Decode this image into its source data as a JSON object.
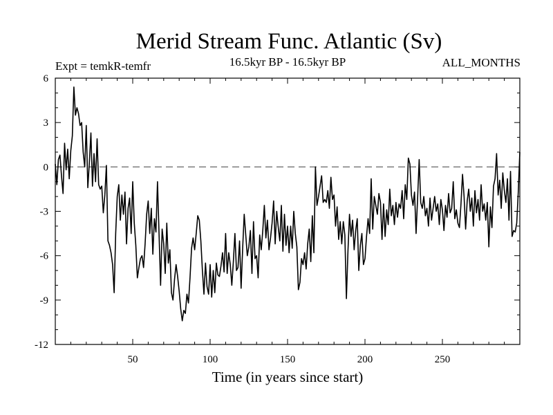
{
  "chart_data": {
    "type": "line",
    "title": "Merid Stream Func. Atlantic (Sv)",
    "subtitle_left": "Expt = temkR-temfr",
    "subtitle_center": "16.5kyr BP - 16.5kyr BP",
    "subtitle_right": "ALL_MONTHS",
    "xlabel": "Time (in years since start)",
    "ylabel": "",
    "xlim": [
      0,
      300
    ],
    "ylim": [
      -12,
      6
    ],
    "xticks": [
      50,
      100,
      150,
      200,
      250
    ],
    "xtick_labels": [
      "50",
      "100",
      "150",
      "200",
      "250"
    ],
    "yticks": [
      -12,
      -9,
      -6,
      -3,
      0,
      3,
      6
    ],
    "ytick_labels": [
      "-12",
      "-9",
      "-6",
      "-3",
      "0",
      "3",
      "6"
    ],
    "reference_line": {
      "y": 0,
      "style": "dashed"
    },
    "series": [
      {
        "name": "Merid Stream Func. Atlantic",
        "anchors": [
          [
            0,
            0.2
          ],
          [
            1,
            -1.2
          ],
          [
            2,
            0.5
          ],
          [
            3,
            0.8
          ],
          [
            4,
            -0.6
          ],
          [
            5,
            -1.8
          ],
          [
            6,
            1.6
          ],
          [
            7,
            -0.2
          ],
          [
            8,
            1.2
          ],
          [
            9,
            -0.8
          ],
          [
            10,
            1.1
          ],
          [
            11,
            2.1
          ],
          [
            12,
            5.4
          ],
          [
            13,
            3.5
          ],
          [
            14,
            4.0
          ],
          [
            15,
            3.6
          ],
          [
            16,
            2.8
          ],
          [
            17,
            3.0
          ],
          [
            18,
            1.0
          ],
          [
            19,
            0.0
          ],
          [
            20,
            2.8
          ],
          [
            21,
            -1.4
          ],
          [
            22,
            0.3
          ],
          [
            23,
            2.3
          ],
          [
            24,
            -1.3
          ],
          [
            25,
            0.9
          ],
          [
            26,
            -1.0
          ],
          [
            27,
            1.9
          ],
          [
            28,
            -1.2
          ],
          [
            29,
            -1.5
          ],
          [
            30,
            -1.3
          ],
          [
            31,
            -3.1
          ],
          [
            32,
            -1.9
          ],
          [
            33,
            0.1
          ],
          [
            34,
            -5.0
          ],
          [
            35,
            -5.3
          ],
          [
            36,
            -5.8
          ],
          [
            37,
            -6.6
          ],
          [
            38,
            -8.5
          ],
          [
            39,
            -4.5
          ],
          [
            40,
            -2.0
          ],
          [
            41,
            -1.2
          ],
          [
            42,
            -3.6
          ],
          [
            43,
            -1.9
          ],
          [
            44,
            -3.2
          ],
          [
            45,
            -1.7
          ],
          [
            46,
            -5.2
          ],
          [
            47,
            -2.8
          ],
          [
            48,
            -2.1
          ],
          [
            49,
            -4.5
          ],
          [
            50,
            -1.0
          ],
          [
            51,
            -3.8
          ],
          [
            52,
            -5.3
          ],
          [
            53,
            -7.5
          ],
          [
            54,
            -6.8
          ],
          [
            55,
            -6.2
          ],
          [
            56,
            -6.0
          ],
          [
            57,
            -6.8
          ],
          [
            58,
            -5.2
          ],
          [
            59,
            -3.2
          ],
          [
            60,
            -2.3
          ],
          [
            61,
            -4.5
          ],
          [
            62,
            -2.8
          ],
          [
            63,
            -5.9
          ],
          [
            64,
            -3.5
          ],
          [
            65,
            -4.4
          ],
          [
            66,
            -1.0
          ],
          [
            67,
            -4.5
          ],
          [
            68,
            -8.0
          ],
          [
            69,
            -4.2
          ],
          [
            70,
            -5.2
          ],
          [
            71,
            -7.2
          ],
          [
            72,
            -3.8
          ],
          [
            73,
            -6.5
          ],
          [
            74,
            -5.6
          ],
          [
            75,
            -8.5
          ],
          [
            76,
            -9.0
          ],
          [
            77,
            -7.6
          ],
          [
            78,
            -6.6
          ],
          [
            79,
            -7.4
          ],
          [
            80,
            -8.4
          ],
          [
            81,
            -9.6
          ],
          [
            82,
            -10.4
          ],
          [
            83,
            -9.7
          ],
          [
            84,
            -9.9
          ],
          [
            85,
            -8.6
          ],
          [
            86,
            -9.2
          ],
          [
            87,
            -7.5
          ],
          [
            88,
            -5.5
          ],
          [
            89,
            -4.8
          ],
          [
            90,
            -5.6
          ],
          [
            91,
            -4.5
          ],
          [
            92,
            -3.3
          ],
          [
            93,
            -3.6
          ],
          [
            94,
            -5.0
          ],
          [
            95,
            -7.0
          ],
          [
            96,
            -8.6
          ],
          [
            97,
            -6.5
          ],
          [
            98,
            -8.1
          ],
          [
            99,
            -8.6
          ],
          [
            100,
            -6.6
          ],
          [
            101,
            -8.8
          ],
          [
            102,
            -7.0
          ],
          [
            103,
            -8.5
          ],
          [
            104,
            -6.5
          ],
          [
            105,
            -7.3
          ],
          [
            106,
            -7.4
          ],
          [
            107,
            -6.7
          ],
          [
            108,
            -5.8
          ],
          [
            109,
            -7.1
          ],
          [
            110,
            -4.5
          ],
          [
            111,
            -7.2
          ],
          [
            112,
            -5.8
          ],
          [
            113,
            -6.6
          ],
          [
            114,
            -8.0
          ],
          [
            115,
            -6.4
          ],
          [
            116,
            -4.5
          ],
          [
            117,
            -7.0
          ],
          [
            118,
            -6.8
          ],
          [
            119,
            -5.0
          ],
          [
            120,
            -8.2
          ],
          [
            121,
            -5.5
          ],
          [
            122,
            -3.2
          ],
          [
            123,
            -4.6
          ],
          [
            124,
            -6.0
          ],
          [
            125,
            -5.4
          ],
          [
            126,
            -4.3
          ],
          [
            127,
            -7.2
          ],
          [
            128,
            -3.7
          ],
          [
            129,
            -6.2
          ],
          [
            130,
            -6.0
          ],
          [
            131,
            -7.5
          ],
          [
            132,
            -4.6
          ],
          [
            133,
            -5.6
          ],
          [
            134,
            -4.3
          ],
          [
            135,
            -2.6
          ],
          [
            136,
            -4.8
          ],
          [
            137,
            -3.6
          ],
          [
            138,
            -5.6
          ],
          [
            139,
            -4.8
          ],
          [
            140,
            -3.8
          ],
          [
            141,
            -2.3
          ],
          [
            142,
            -5.2
          ],
          [
            143,
            -3.0
          ],
          [
            144,
            -4.1
          ],
          [
            145,
            -5.0
          ],
          [
            146,
            -2.6
          ],
          [
            147,
            -5.7
          ],
          [
            148,
            -3.2
          ],
          [
            149,
            -5.3
          ],
          [
            150,
            -4.0
          ],
          [
            151,
            -5.8
          ],
          [
            152,
            -4.0
          ],
          [
            153,
            -5.5
          ],
          [
            154,
            -3.0
          ],
          [
            155,
            -4.5
          ],
          [
            156,
            -5.4
          ],
          [
            157,
            -8.3
          ],
          [
            158,
            -7.8
          ],
          [
            159,
            -6.2
          ],
          [
            160,
            -6.6
          ],
          [
            161,
            -5.8
          ],
          [
            162,
            -6.9
          ],
          [
            163,
            -5.2
          ],
          [
            164,
            -4.2
          ],
          [
            165,
            -6.4
          ],
          [
            166,
            -3.3
          ],
          [
            167,
            -5.8
          ],
          [
            168,
            0.0
          ],
          [
            169,
            -2.6
          ],
          [
            170,
            -2.0
          ],
          [
            171,
            -1.3
          ],
          [
            172,
            -0.6
          ],
          [
            173,
            -2.4
          ],
          [
            174,
            -2.2
          ],
          [
            175,
            -2.4
          ],
          [
            176,
            -1.6
          ],
          [
            177,
            -2.8
          ],
          [
            178,
            -0.7
          ],
          [
            179,
            -2.2
          ],
          [
            180,
            -1.9
          ],
          [
            181,
            -4.0
          ],
          [
            182,
            -2.7
          ],
          [
            183,
            -4.9
          ],
          [
            184,
            -3.7
          ],
          [
            185,
            -5.2
          ],
          [
            186,
            -3.7
          ],
          [
            187,
            -4.6
          ],
          [
            188,
            -8.9
          ],
          [
            189,
            -5.7
          ],
          [
            190,
            -3.2
          ],
          [
            191,
            -4.7
          ],
          [
            192,
            -3.6
          ],
          [
            193,
            -5.6
          ],
          [
            194,
            -4.3
          ],
          [
            195,
            -3.5
          ],
          [
            196,
            -7.0
          ],
          [
            197,
            -5.3
          ],
          [
            198,
            -4.5
          ],
          [
            199,
            -6.6
          ],
          [
            200,
            -6.2
          ],
          [
            201,
            -4.7
          ],
          [
            202,
            -3.5
          ],
          [
            203,
            -4.5
          ],
          [
            204,
            -0.8
          ],
          [
            205,
            -4.2
          ],
          [
            206,
            -2.0
          ],
          [
            207,
            -2.6
          ],
          [
            208,
            -3.2
          ],
          [
            209,
            -1.8
          ],
          [
            210,
            -2.4
          ],
          [
            211,
            -4.9
          ],
          [
            212,
            -2.5
          ],
          [
            213,
            -4.7
          ],
          [
            214,
            -2.9
          ],
          [
            215,
            -3.9
          ],
          [
            216,
            -1.5
          ],
          [
            217,
            -3.3
          ],
          [
            218,
            -2.6
          ],
          [
            219,
            -3.9
          ],
          [
            220,
            -2.4
          ],
          [
            221,
            -3.4
          ],
          [
            222,
            -2.5
          ],
          [
            223,
            -2.8
          ],
          [
            224,
            -1.6
          ],
          [
            225,
            -3.5
          ],
          [
            226,
            -1.2
          ],
          [
            227,
            -2.2
          ],
          [
            228,
            0.6
          ],
          [
            229,
            0.2
          ],
          [
            230,
            -1.9
          ],
          [
            231,
            -2.6
          ],
          [
            232,
            -1.7
          ],
          [
            233,
            -4.5
          ],
          [
            234,
            -2.1
          ],
          [
            235,
            0.5
          ],
          [
            236,
            -2.4
          ],
          [
            237,
            -2.8
          ],
          [
            238,
            -2.0
          ],
          [
            239,
            -3.3
          ],
          [
            240,
            -2.8
          ],
          [
            241,
            -4.0
          ],
          [
            242,
            -2.1
          ],
          [
            243,
            -3.6
          ],
          [
            244,
            -2.8
          ],
          [
            245,
            -2.0
          ],
          [
            246,
            -3.0
          ],
          [
            247,
            -2.5
          ],
          [
            248,
            -3.9
          ],
          [
            249,
            -2.2
          ],
          [
            250,
            -2.9
          ],
          [
            251,
            -4.3
          ],
          [
            252,
            -2.6
          ],
          [
            253,
            -3.4
          ],
          [
            254,
            -1.8
          ],
          [
            255,
            -3.1
          ],
          [
            256,
            -2.8
          ],
          [
            257,
            -1.0
          ],
          [
            258,
            -3.5
          ],
          [
            259,
            -2.9
          ],
          [
            260,
            -3.8
          ],
          [
            261,
            -4.1
          ],
          [
            262,
            -2.5
          ],
          [
            263,
            -0.5
          ],
          [
            264,
            -2.0
          ],
          [
            265,
            -4.2
          ],
          [
            266,
            -2.3
          ],
          [
            267,
            -1.5
          ],
          [
            268,
            -3.0
          ],
          [
            269,
            -2.1
          ],
          [
            270,
            -4.0
          ],
          [
            271,
            -1.6
          ],
          [
            272,
            -3.1
          ],
          [
            273,
            -2.2
          ],
          [
            274,
            -3.6
          ],
          [
            275,
            -1.2
          ],
          [
            276,
            -3.0
          ],
          [
            277,
            -2.5
          ],
          [
            278,
            -3.6
          ],
          [
            279,
            -2.4
          ],
          [
            280,
            -5.4
          ],
          [
            281,
            -2.7
          ],
          [
            282,
            -4.1
          ],
          [
            283,
            -1.3
          ],
          [
            284,
            -0.8
          ],
          [
            285,
            0.9
          ],
          [
            286,
            -1.9
          ],
          [
            287,
            -0.9
          ],
          [
            288,
            -2.8
          ],
          [
            289,
            -0.4
          ],
          [
            290,
            -1.6
          ],
          [
            291,
            -2.4
          ],
          [
            292,
            -0.8
          ],
          [
            293,
            -3.6
          ],
          [
            294,
            -0.3
          ],
          [
            295,
            -4.7
          ],
          [
            296,
            -4.3
          ],
          [
            297,
            -4.4
          ],
          [
            298,
            -3.8
          ],
          [
            299,
            -1.7
          ],
          [
            300,
            1.0
          ]
        ]
      }
    ]
  }
}
